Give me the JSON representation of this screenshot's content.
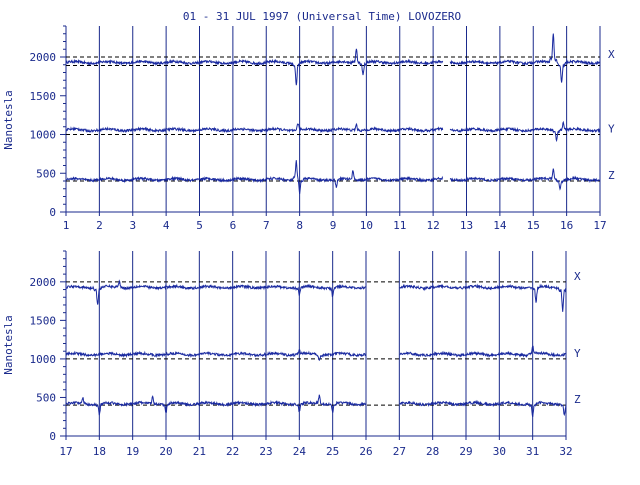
{
  "title": "01 - 31 JUL 1997 (Universal Time) LOVOZERO",
  "colors": {
    "ink": "#1a2a8c",
    "trace": "#1a2aa0",
    "bg": "#ffffff",
    "dash": "#000000"
  },
  "chart_data": [
    {
      "type": "line",
      "title": "01 - 31 JUL 1997 (Universal Time) LOVOZERO",
      "ylabel": "Nanotesla",
      "xlabel": "",
      "xlim": [
        1,
        17
      ],
      "ylim": [
        0,
        2400
      ],
      "x_ticks": [
        "1",
        "2",
        "3",
        "4",
        "5",
        "6",
        "7",
        "8",
        "9",
        "10",
        "11",
        "12",
        "13",
        "14",
        "15",
        "16",
        "17"
      ],
      "y_ticks": [
        "0",
        "500",
        "1000",
        "1500",
        "2000"
      ],
      "grid": "vertical day lines; dashed baselines per component",
      "gaps": [
        [
          12.3,
          12.5
        ]
      ],
      "series": [
        {
          "name": "X",
          "baseline": 1960,
          "dashed_ref": [
            1890,
            2000
          ],
          "level": 1930,
          "events": [
            {
              "day": 7.9,
              "amp": -300
            },
            {
              "day": 9.7,
              "amp": 180
            },
            {
              "day": 9.9,
              "amp": -150
            },
            {
              "day": 15.6,
              "amp": 380
            },
            {
              "day": 15.85,
              "amp": -260
            }
          ]
        },
        {
          "name": "Y",
          "baseline": 1000,
          "dashed_ref": [
            1000
          ],
          "level": 1060,
          "events": [
            {
              "day": 7.95,
              "amp": 90
            },
            {
              "day": 9.7,
              "amp": 80
            },
            {
              "day": 15.7,
              "amp": -120
            },
            {
              "day": 15.9,
              "amp": 100
            }
          ]
        },
        {
          "name": "Z",
          "baseline": 400,
          "dashed_ref": [
            400
          ],
          "level": 420,
          "events": [
            {
              "day": 7.9,
              "amp": 260
            },
            {
              "day": 8.0,
              "amp": -200
            },
            {
              "day": 9.1,
              "amp": -100
            },
            {
              "day": 9.6,
              "amp": 120
            },
            {
              "day": 15.6,
              "amp": 140
            },
            {
              "day": 15.8,
              "amp": -120
            }
          ]
        }
      ]
    },
    {
      "type": "line",
      "ylabel": "Nanotesla",
      "xlabel": "",
      "xlim": [
        17,
        32
      ],
      "ylim": [
        0,
        2400
      ],
      "x_ticks": [
        "17",
        "18",
        "19",
        "20",
        "21",
        "22",
        "23",
        "24",
        "25",
        "26",
        "27",
        "28",
        "29",
        "30",
        "31",
        "32"
      ],
      "y_ticks": [
        "0",
        "500",
        "1000",
        "1500",
        "2000"
      ],
      "grid": "vertical day lines; dashed baselines per component",
      "gaps": [
        [
          26.0,
          27.0
        ]
      ],
      "series": [
        {
          "name": "X",
          "baseline": 2000,
          "dashed_ref": [
            2000
          ],
          "level": 1930,
          "events": [
            {
              "day": 17.95,
              "amp": -220
            },
            {
              "day": 18.6,
              "amp": 80
            },
            {
              "day": 24.0,
              "amp": -100
            },
            {
              "day": 25.0,
              "amp": -120
            },
            {
              "day": 31.1,
              "amp": -200
            },
            {
              "day": 31.9,
              "amp": -300
            }
          ]
        },
        {
          "name": "Y",
          "baseline": 1000,
          "dashed_ref": [
            1000
          ],
          "level": 1060,
          "events": [
            {
              "day": 24.0,
              "amp": 60
            },
            {
              "day": 24.6,
              "amp": -60
            },
            {
              "day": 31.0,
              "amp": 110
            }
          ]
        },
        {
          "name": "Z",
          "baseline": 400,
          "dashed_ref": [
            400
          ],
          "level": 420,
          "events": [
            {
              "day": 17.5,
              "amp": 80
            },
            {
              "day": 18.0,
              "amp": -140
            },
            {
              "day": 19.6,
              "amp": 90
            },
            {
              "day": 20.0,
              "amp": -120
            },
            {
              "day": 24.0,
              "amp": -100
            },
            {
              "day": 24.6,
              "amp": 110
            },
            {
              "day": 25.0,
              "amp": -120
            },
            {
              "day": 31.0,
              "amp": -160
            },
            {
              "day": 31.95,
              "amp": -140
            }
          ]
        }
      ]
    }
  ]
}
